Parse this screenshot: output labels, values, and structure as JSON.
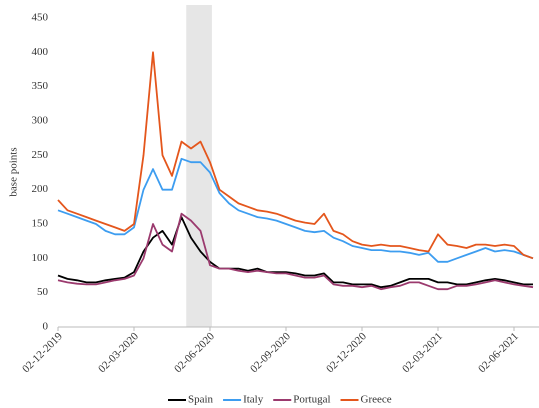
{
  "chart_data": {
    "type": "line",
    "y_label": "base points",
    "categories": [
      "02-12-2019",
      null,
      null,
      null,
      null,
      null,
      null,
      null,
      "02-03-2020",
      null,
      null,
      null,
      null,
      null,
      null,
      null,
      "02-06-2020",
      null,
      null,
      null,
      null,
      null,
      null,
      null,
      "02-09-2020",
      null,
      null,
      null,
      null,
      null,
      null,
      null,
      "02-12-2020",
      null,
      null,
      null,
      null,
      null,
      null,
      null,
      "02-03-2021",
      null,
      null,
      null,
      null,
      null,
      null,
      null,
      "02-06-2021",
      null,
      null
    ],
    "series": [
      {
        "name": "Spain",
        "color": "#000000",
        "values": [
          75,
          70,
          68,
          65,
          65,
          68,
          70,
          72,
          80,
          110,
          130,
          140,
          120,
          160,
          130,
          110,
          95,
          85,
          85,
          85,
          82,
          85,
          80,
          80,
          80,
          78,
          75,
          75,
          78,
          65,
          65,
          62,
          62,
          62,
          58,
          60,
          65,
          70,
          70,
          70,
          65,
          65,
          62,
          62,
          65,
          68,
          70,
          68,
          65,
          62,
          62
        ]
      },
      {
        "name": "Italy",
        "color": "#3d9df0",
        "values": [
          170,
          165,
          160,
          155,
          150,
          140,
          135,
          135,
          145,
          200,
          230,
          200,
          200,
          245,
          240,
          240,
          225,
          195,
          180,
          170,
          165,
          160,
          158,
          155,
          150,
          145,
          140,
          138,
          140,
          130,
          125,
          118,
          115,
          112,
          112,
          110,
          110,
          108,
          105,
          108,
          95,
          95,
          100,
          105,
          110,
          115,
          110,
          112,
          110,
          105,
          100
        ]
      },
      {
        "name": "Portugal",
        "color": "#9b3a6e",
        "values": [
          68,
          65,
          63,
          62,
          62,
          65,
          68,
          70,
          75,
          100,
          150,
          120,
          110,
          165,
          155,
          140,
          90,
          85,
          85,
          82,
          80,
          82,
          80,
          78,
          78,
          75,
          72,
          72,
          75,
          62,
          60,
          60,
          58,
          60,
          55,
          58,
          60,
          65,
          65,
          60,
          55,
          55,
          60,
          60,
          62,
          65,
          68,
          65,
          62,
          60,
          58
        ]
      },
      {
        "name": "Greece",
        "color": "#e4561c",
        "values": [
          185,
          170,
          165,
          160,
          155,
          150,
          145,
          140,
          150,
          250,
          400,
          250,
          220,
          270,
          260,
          270,
          240,
          200,
          190,
          180,
          175,
          170,
          168,
          165,
          160,
          155,
          152,
          150,
          165,
          140,
          135,
          125,
          120,
          118,
          120,
          118,
          118,
          115,
          112,
          110,
          135,
          120,
          118,
          115,
          120,
          120,
          118,
          120,
          118,
          105,
          100
        ]
      }
    ],
    "highlight": [
      13.5,
      16.2
    ],
    "ylim": [
      0,
      450
    ],
    "yticks": [
      0,
      50,
      100,
      150,
      200,
      250,
      300,
      350,
      400,
      450
    ],
    "grid": false,
    "legend": "bottom"
  }
}
